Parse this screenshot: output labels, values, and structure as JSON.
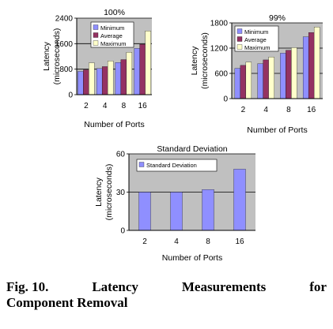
{
  "colors": {
    "minimum": "#8f8fff",
    "average": "#943262",
    "maximum": "#ffffcb",
    "std": "#8f8fff",
    "plot_bg": "#c0c0c0",
    "grid": "#000000"
  },
  "chart_data": [
    {
      "type": "bar",
      "title": "100%",
      "xlabel": "Number of Ports",
      "ylabel": "Latency (microseconds)",
      "ylabel_lines": [
        "Latency",
        "(microseconds)"
      ],
      "categories": [
        "2",
        "4",
        "8",
        "16"
      ],
      "yticks": [
        "0",
        "800",
        "1600",
        "2400"
      ],
      "ylim": [
        0,
        2400
      ],
      "grid": true,
      "legend_position": "top-left",
      "series": [
        {
          "name": "Minimum",
          "values": [
            730,
            820,
            1010,
            1450
          ]
        },
        {
          "name": "Average",
          "values": [
            780,
            880,
            1100,
            1580
          ]
        },
        {
          "name": "Maximum",
          "values": [
            1000,
            1060,
            1330,
            2000
          ]
        }
      ]
    },
    {
      "type": "bar",
      "title": "99%",
      "xlabel": "Number of Ports",
      "ylabel": "Latency (microseconds)",
      "ylabel_lines": [
        "Latency",
        "(microseconds)"
      ],
      "categories": [
        "2",
        "4",
        "8",
        "16"
      ],
      "yticks": [
        "0",
        "600",
        "1200",
        "1800"
      ],
      "ylim": [
        0,
        1800
      ],
      "grid": true,
      "legend_position": "top-left",
      "series": [
        {
          "name": "Minimum",
          "values": [
            720,
            830,
            1080,
            1470
          ]
        },
        {
          "name": "Average",
          "values": [
            790,
            920,
            1150,
            1570
          ]
        },
        {
          "name": "Maximum",
          "values": [
            870,
            990,
            1210,
            1700
          ]
        }
      ]
    },
    {
      "type": "bar",
      "title": "Standard Deviation",
      "xlabel": "Number of Ports",
      "ylabel": "Latency (microseconds)",
      "ylabel_lines": [
        "Latency",
        "(microseconds)"
      ],
      "categories": [
        "2",
        "4",
        "8",
        "16"
      ],
      "yticks": [
        "0",
        "30",
        "60"
      ],
      "ylim": [
        0,
        60
      ],
      "grid": true,
      "legend_position": "top-left",
      "series": [
        {
          "name": "Standard Deviation",
          "values": [
            30,
            30,
            32,
            48
          ]
        }
      ]
    }
  ],
  "caption": {
    "line1": [
      "Fig. 10.",
      "Latency",
      "Measurements",
      "for"
    ],
    "line2": "Component Removal"
  }
}
